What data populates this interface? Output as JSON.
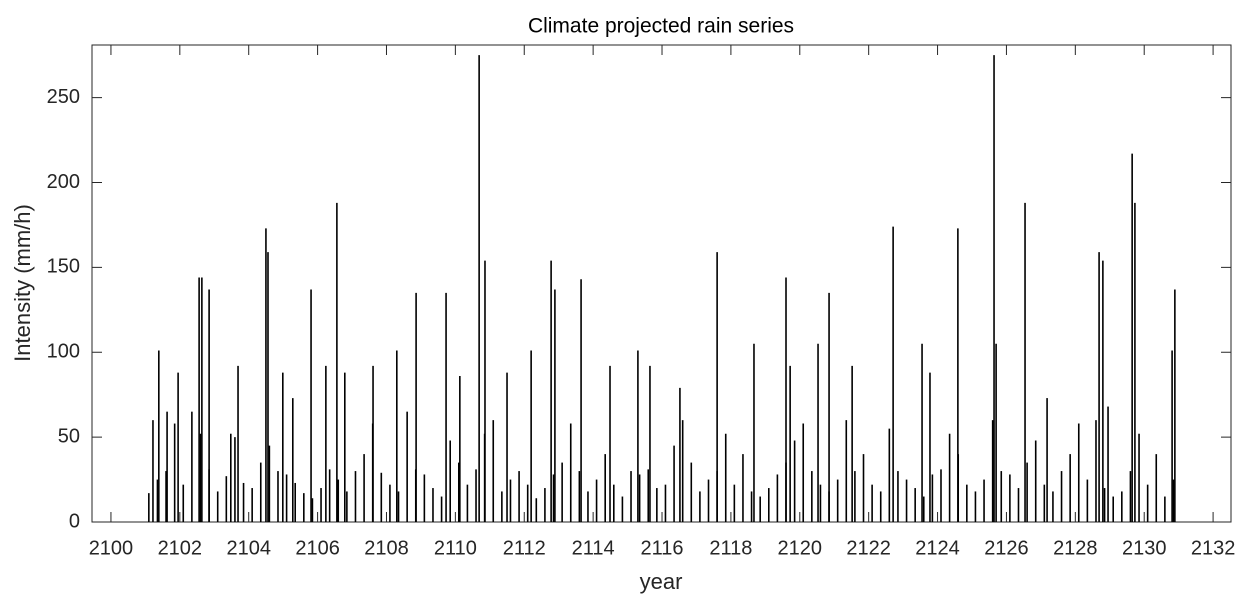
{
  "chart_data": {
    "type": "stem",
    "title": "Climate projected rain series",
    "xlabel": "year",
    "ylabel": "Intensity (mm/h)",
    "xlim": [
      2099.45,
      2132.52
    ],
    "ylim": [
      0,
      281
    ],
    "xticks": [
      2100,
      2102,
      2104,
      2106,
      2108,
      2110,
      2112,
      2114,
      2116,
      2118,
      2120,
      2122,
      2124,
      2126,
      2128,
      2130,
      2132
    ],
    "yticks": [
      0,
      50,
      100,
      150,
      200,
      250
    ],
    "color": "#000000",
    "x": [
      2101.39,
      2101.22,
      2101.63,
      2101.95,
      2102.56,
      2102.64,
      2102.85,
      2103.48,
      2103.69,
      2104.5,
      2104.56,
      2104.99,
      2105.28,
      2105.81,
      2106.24,
      2106.56,
      2106.79,
      2107.61,
      2108.3,
      2108.86,
      2109.73,
      2110.13,
      2110.69,
      2110.86,
      2111.5,
      2112.2,
      2112.78,
      2112.89,
      2113.65,
      2114.49,
      2115.3,
      2115.65,
      2116.52,
      2117.6,
      2118.67,
      2119.6,
      2119.72,
      2120.53,
      2120.85,
      2121.52,
      2122.71,
      2123.55,
      2123.78,
      2124.59,
      2125.64,
      2125.7,
      2126.54,
      2127.18,
      2128.69,
      2128.8,
      2128.95,
      2129.65,
      2129.73,
      2130.81,
      2130.89,
      2101.1,
      2101.35,
      2101.6,
      2101.85,
      2102.1,
      2102.35,
      2102.6,
      2102.85,
      2103.1,
      2103.35,
      2103.6,
      2103.85,
      2104.1,
      2104.35,
      2104.6,
      2104.85,
      2105.1,
      2105.35,
      2105.6,
      2105.85,
      2106.1,
      2106.35,
      2106.6,
      2106.85,
      2107.1,
      2107.35,
      2107.6,
      2107.85,
      2108.1,
      2108.35,
      2108.6,
      2108.85,
      2109.1,
      2109.35,
      2109.6,
      2109.85,
      2110.1,
      2110.35,
      2110.6,
      2110.85,
      2111.1,
      2111.35,
      2111.6,
      2111.85,
      2112.1,
      2112.35,
      2112.6,
      2112.85,
      2113.1,
      2113.35,
      2113.6,
      2113.85,
      2114.1,
      2114.35,
      2114.6,
      2114.85,
      2115.1,
      2115.35,
      2115.6,
      2115.85,
      2116.1,
      2116.35,
      2116.6,
      2116.85,
      2117.1,
      2117.35,
      2117.6,
      2117.85,
      2118.1,
      2118.35,
      2118.6,
      2118.85,
      2119.1,
      2119.35,
      2119.6,
      2119.85,
      2120.1,
      2120.35,
      2120.6,
      2120.85,
      2121.1,
      2121.35,
      2121.6,
      2121.85,
      2122.1,
      2122.35,
      2122.6,
      2122.85,
      2123.1,
      2123.35,
      2123.6,
      2123.85,
      2124.1,
      2124.35,
      2124.6,
      2124.85,
      2125.1,
      2125.35,
      2125.6,
      2125.85,
      2126.1,
      2126.35,
      2126.6,
      2126.85,
      2127.1,
      2127.35,
      2127.6,
      2127.85,
      2128.1,
      2128.35,
      2128.6,
      2128.85,
      2129.1,
      2129.35,
      2129.6,
      2129.85,
      2130.1,
      2130.35,
      2130.6,
      2130.85
    ],
    "values": [
      101,
      60,
      65,
      88,
      144,
      144,
      137,
      52,
      92,
      173,
      159,
      88,
      73,
      137,
      92,
      188,
      88,
      92,
      101,
      135,
      135,
      86,
      275,
      154,
      88,
      101,
      154,
      137,
      143,
      92,
      101,
      92,
      79,
      159,
      105,
      144,
      92,
      105,
      135,
      92,
      174,
      105,
      88,
      173,
      275,
      105,
      188,
      73,
      159,
      154,
      68,
      217,
      188,
      101,
      137,
      17,
      25,
      30,
      58,
      22,
      65,
      52,
      31,
      18,
      27,
      50,
      23,
      20,
      35,
      45,
      30,
      28,
      23,
      17,
      14,
      20,
      31,
      25,
      18,
      30,
      40,
      58,
      29,
      22,
      18,
      65,
      31,
      28,
      20,
      15,
      48,
      35,
      22,
      31,
      52,
      60,
      18,
      25,
      30,
      22,
      14,
      20,
      28,
      35,
      58,
      30,
      18,
      25,
      40,
      22,
      15,
      30,
      28,
      31,
      20,
      22,
      45,
      60,
      35,
      18,
      25,
      30,
      52,
      22,
      40,
      18,
      15,
      20,
      28,
      35,
      48,
      58,
      30,
      22,
      18,
      25,
      60,
      30,
      40,
      22,
      18,
      55,
      30,
      25,
      20,
      15,
      28,
      31,
      52,
      40,
      22,
      18,
      25,
      60,
      30,
      28,
      20,
      35,
      48,
      22,
      18,
      30,
      40,
      58,
      25,
      60,
      20,
      15,
      18,
      30,
      52,
      22,
      40,
      15,
      25
    ]
  }
}
